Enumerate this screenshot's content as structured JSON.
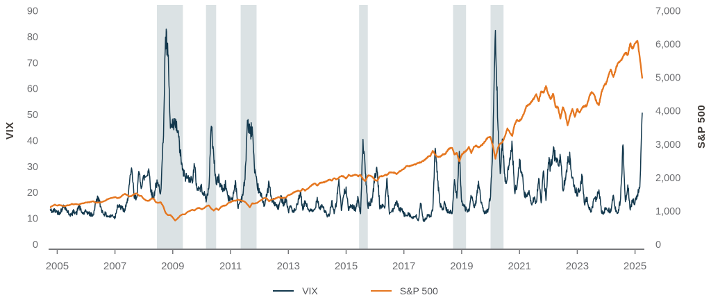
{
  "colors": {
    "background": "#ffffff",
    "vix_line": "#13384d",
    "sp500_line": "#e5761f",
    "shaded_band": "#dbe2e4",
    "axis_line": "#77787b",
    "tick_label": "#6d6e71",
    "axis_title": "#3f3a36",
    "legend_label": "#55565a"
  },
  "chart_data": {
    "type": "line",
    "title": "",
    "legend_position": "bottom",
    "grid": false,
    "x_axis": {
      "range_years": [
        2004.75,
        2025.25
      ],
      "ticks": [
        2005,
        2007,
        2009,
        2011,
        2013,
        2015,
        2017,
        2019,
        2021,
        2023,
        2025
      ]
    },
    "left_axis": {
      "label": "VIX",
      "range": [
        0,
        90
      ],
      "ticks": [
        0,
        10,
        20,
        30,
        40,
        50,
        60,
        70,
        80,
        90
      ]
    },
    "right_axis": {
      "label": "S&P 500",
      "range": [
        0,
        7000
      ],
      "ticks": [
        0,
        1000,
        2000,
        3000,
        4000,
        5000,
        6000,
        7000
      ],
      "tick_labels": [
        "0",
        "1,000",
        "2,000",
        "3,000",
        "4,000",
        "5,000",
        "6,000",
        "7,000"
      ]
    },
    "series_start_year": 2004.75,
    "series_step_months": 1,
    "shaded_bands": [
      {
        "start_year": 2008.45,
        "end_year": 2009.35
      },
      {
        "start_year": 2010.15,
        "end_year": 2010.5
      },
      {
        "start_year": 2011.35,
        "end_year": 2011.9
      },
      {
        "start_year": 2015.45,
        "end_year": 2015.75
      },
      {
        "start_year": 2018.7,
        "end_year": 2019.15
      },
      {
        "start_year": 2020.0,
        "end_year": 2020.45
      }
    ],
    "series": [
      {
        "name": "VIX",
        "axis": "left",
        "color": "#13384d",
        "values": [
          13.5,
          13.0,
          13.3,
          12.8,
          12.5,
          14.0,
          15.3,
          13.3,
          12.0,
          11.6,
          13.3,
          12.0,
          15.3,
          12.8,
          12.1,
          12.9,
          12.3,
          11.7,
          11.6,
          16.4,
          18.5,
          14.9,
          12.3,
          11.9,
          11.1,
          10.9,
          11.6,
          10.4,
          15.4,
          14.6,
          14.2,
          13.1,
          16.2,
          23.5,
          29.0,
          18.0,
          18.5,
          28.2,
          22.5,
          26.2,
          26.5,
          29.4,
          20.8,
          17.8,
          23.9,
          22.9,
          20.6,
          39.4,
          80.1,
          72.7,
          45.0,
          45.2,
          46.4,
          44.1,
          36.5,
          28.9,
          26.4,
          25.9,
          26.0,
          24.6,
          30.7,
          22.0,
          21.7,
          22.1,
          19.5,
          17.6,
          22.1,
          45.8,
          34.5,
          23.5,
          26.1,
          22.5,
          21.2,
          23.5,
          17.8,
          17.7,
          18.4,
          24.9,
          14.8,
          16.7,
          19.3,
          25.3,
          48.0,
          43.0,
          45.5,
          27.8,
          23.4,
          20.2,
          18.4,
          15.5,
          18.8,
          24.1,
          17.1,
          16.6,
          15.0,
          14.3,
          18.6,
          15.9,
          18.0,
          13.0,
          15.2,
          12.7,
          13.5,
          16.3,
          20.5,
          13.4,
          17.0,
          14.2,
          13.2,
          12.9,
          13.7,
          18.4,
          14.0,
          15.5,
          13.4,
          11.4,
          11.2,
          17.0,
          12.1,
          16.3,
          25.3,
          13.3,
          19.2,
          22.4,
          13.3,
          15.3,
          14.6,
          13.8,
          18.2,
          12.1,
          40.7,
          27.6,
          15.1,
          16.1,
          18.2,
          27.6,
          28.1,
          13.9,
          15.7,
          14.2,
          25.8,
          11.9,
          13.4,
          14.0,
          17.1,
          13.3,
          14.0,
          11.8,
          11.5,
          12.4,
          10.8,
          10.4,
          11.2,
          9.4,
          16.0,
          9.5,
          10.2,
          11.3,
          11.0,
          13.5,
          37.3,
          24.9,
          15.9,
          13.5,
          16.1,
          12.8,
          12.9,
          12.1,
          25.2,
          18.1,
          36.1,
          16.6,
          14.8,
          13.7,
          13.1,
          18.7,
          15.1,
          16.1,
          24.6,
          16.2,
          13.2,
          12.6,
          13.8,
          18.8,
          40.1,
          82.7,
          46.8,
          27.5,
          40.8,
          24.5,
          26.4,
          33.6,
          38.0,
          20.6,
          22.8,
          33.1,
          28.0,
          19.4,
          18.6,
          21.0,
          15.7,
          18.2,
          16.5,
          25.7,
          16.3,
          28.6,
          17.2,
          31.9,
          30.2,
          36.5,
          33.4,
          31.1,
          34.0,
          21.3,
          25.9,
          31.6,
          33.6,
          25.9,
          21.7,
          19.9,
          20.7,
          26.5,
          15.8,
          17.9,
          13.6,
          13.6,
          17.9,
          17.5,
          21.3,
          12.9,
          12.5,
          14.3,
          13.4,
          13.0,
          19.2,
          12.9,
          12.4,
          18.0,
          38.6,
          16.7,
          23.2,
          13.5,
          17.4,
          16.4,
          19.6,
          22.3,
          51.0
        ]
      },
      {
        "name": "S&P 500",
        "axis": "right",
        "color": "#e5761f",
        "values": [
          1130,
          1174,
          1212,
          1181,
          1204,
          1181,
          1157,
          1192,
          1191,
          1234,
          1220,
          1229,
          1207,
          1249,
          1248,
          1280,
          1281,
          1295,
          1311,
          1270,
          1270,
          1277,
          1304,
          1336,
          1378,
          1401,
          1418,
          1438,
          1407,
          1421,
          1482,
          1531,
          1503,
          1455,
          1474,
          1527,
          1549,
          1481,
          1468,
          1379,
          1331,
          1323,
          1386,
          1400,
          1280,
          1267,
          1283,
          1166,
          969,
          896,
          903,
          826,
          735,
          798,
          873,
          919,
          919,
          987,
          1021,
          1057,
          1036,
          1096,
          1115,
          1074,
          1104,
          1169,
          1187,
          1089,
          1031,
          1102,
          1049,
          1141,
          1183,
          1181,
          1258,
          1286,
          1327,
          1326,
          1364,
          1345,
          1321,
          1292,
          1219,
          1131,
          1253,
          1247,
          1258,
          1312,
          1366,
          1408,
          1398,
          1310,
          1362,
          1379,
          1407,
          1441,
          1412,
          1416,
          1426,
          1498,
          1515,
          1569,
          1598,
          1631,
          1606,
          1686,
          1633,
          1682,
          1757,
          1806,
          1848,
          1783,
          1859,
          1872,
          1884,
          1924,
          1960,
          1931,
          2003,
          1972,
          2018,
          2068,
          2059,
          1995,
          2105,
          2068,
          2086,
          2107,
          2063,
          2104,
          1972,
          1920,
          2079,
          2080,
          2044,
          1940,
          1932,
          2060,
          2065,
          2097,
          2099,
          2174,
          2171,
          2168,
          2126,
          2199,
          2239,
          2279,
          2364,
          2363,
          2384,
          2412,
          2423,
          2470,
          2472,
          2519,
          2575,
          2648,
          2674,
          2824,
          2714,
          2641,
          2648,
          2705,
          2718,
          2816,
          2902,
          2914,
          2712,
          2760,
          2507,
          2704,
          2784,
          2834,
          2946,
          2752,
          2942,
          2980,
          2926,
          2977,
          3038,
          3141,
          3231,
          3226,
          2954,
          2585,
          2912,
          3044,
          3100,
          3271,
          3500,
          3363,
          3270,
          3622,
          3756,
          3714,
          3811,
          3973,
          4181,
          4204,
          4298,
          4395,
          4523,
          4308,
          4605,
          4567,
          4766,
          4516,
          4374,
          4530,
          4132,
          4132,
          3785,
          4130,
          3955,
          3586,
          3872,
          4080,
          3840,
          4077,
          3970,
          4109,
          4169,
          4180,
          4450,
          4589,
          4508,
          4288,
          4194,
          4568,
          4770,
          4846,
          5096,
          5254,
          5036,
          5278,
          5460,
          5522,
          5648,
          5762,
          5705,
          6032,
          5882,
          6041,
          6120,
          5612,
          4990
        ]
      }
    ],
    "legend": {
      "entries": [
        "VIX",
        "S&P 500"
      ]
    }
  }
}
